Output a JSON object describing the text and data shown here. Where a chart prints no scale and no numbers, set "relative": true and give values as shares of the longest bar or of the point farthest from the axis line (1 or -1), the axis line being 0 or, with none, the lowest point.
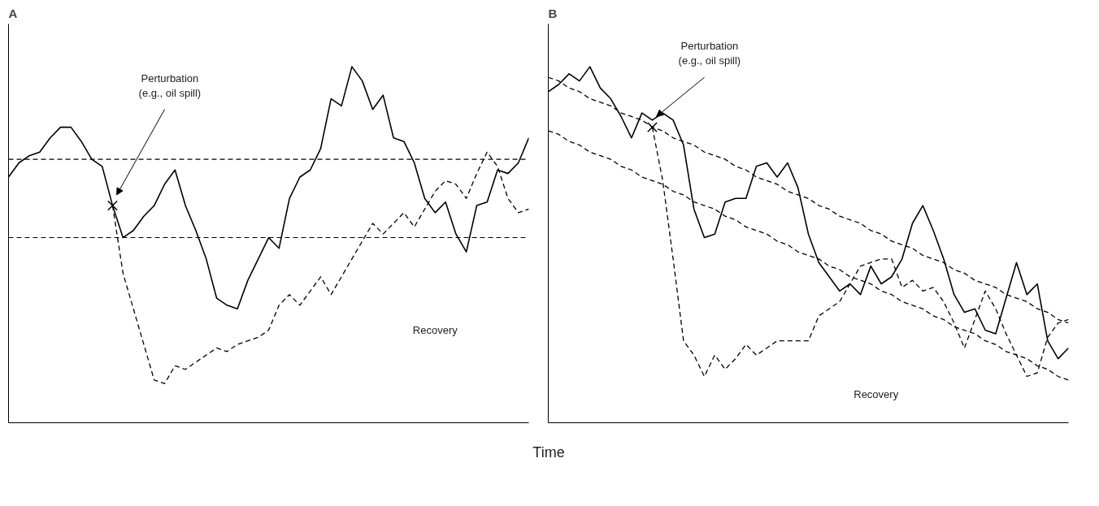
{
  "chart_data": [
    {
      "type": "line",
      "title": "A",
      "xlabel": "Time",
      "relative": true,
      "categories": [
        null,
        null,
        null,
        null,
        null,
        null,
        null,
        null,
        null,
        null,
        null,
        null,
        null,
        null,
        null,
        null,
        null,
        null,
        null,
        null,
        null,
        null,
        null,
        null,
        null,
        null,
        null,
        null,
        null,
        null,
        null,
        null,
        null,
        null,
        null,
        null,
        null,
        null,
        null,
        null,
        null,
        null,
        null,
        null,
        null,
        null,
        null,
        null,
        null,
        null,
        null
      ],
      "series": [
        {
          "color": "#000000",
          "line_style": "solid",
          "values": [
            0.69,
            0.73,
            0.75,
            0.76,
            0.8,
            0.83,
            0.83,
            0.79,
            0.74,
            0.72,
            0.61,
            0.52,
            0.54,
            0.58,
            0.61,
            0.67,
            0.71,
            0.61,
            0.54,
            0.46,
            0.35,
            0.33,
            0.32,
            0.4,
            0.46,
            0.52,
            0.49,
            0.63,
            0.69,
            0.71,
            0.77,
            0.91,
            0.89,
            1.0,
            0.96,
            0.88,
            0.92,
            0.8,
            0.79,
            0.73,
            0.63,
            0.59,
            0.62,
            0.53,
            0.48,
            0.61,
            0.62,
            0.71,
            0.7,
            0.73,
            0.8
          ]
        },
        {
          "color": "#000000",
          "line_style": "dashed",
          "values": [
            null,
            null,
            null,
            null,
            null,
            null,
            null,
            null,
            null,
            null,
            0.61,
            0.42,
            0.32,
            0.22,
            0.12,
            0.11,
            0.16,
            0.15,
            0.17,
            0.19,
            0.21,
            0.2,
            0.22,
            0.23,
            0.24,
            0.26,
            0.33,
            0.36,
            0.33,
            0.37,
            0.41,
            0.36,
            0.41,
            0.46,
            0.51,
            0.56,
            0.53,
            0.56,
            0.59,
            0.55,
            0.6,
            0.65,
            0.68,
            0.67,
            0.63,
            0.7,
            0.76,
            0.72,
            0.63,
            0.59,
            0.6
          ]
        }
      ],
      "ref_lines": [
        {
          "axis": "y",
          "value": 0.74,
          "color": "#000000",
          "line_style": "dashed"
        },
        {
          "axis": "y",
          "value": 0.52,
          "color": "#000000",
          "line_style": "dashed"
        }
      ],
      "annotations": [
        "Perturbation\n(e.g., oil spill)",
        "Recovery"
      ]
    },
    {
      "type": "line",
      "title": "B",
      "relative": true,
      "categories": [
        null,
        null,
        null,
        null,
        null,
        null,
        null,
        null,
        null,
        null,
        null,
        null,
        null,
        null,
        null,
        null,
        null,
        null,
        null,
        null,
        null,
        null,
        null,
        null,
        null,
        null,
        null,
        null,
        null,
        null,
        null,
        null,
        null,
        null,
        null,
        null,
        null,
        null,
        null,
        null,
        null,
        null,
        null,
        null,
        null,
        null,
        null,
        null,
        null,
        null,
        null
      ],
      "series": [
        {
          "color": "#000000",
          "line_style": "solid",
          "values": [
            0.93,
            0.95,
            0.98,
            0.96,
            1.0,
            0.94,
            0.91,
            0.86,
            0.8,
            0.87,
            0.85,
            0.87,
            0.85,
            0.78,
            0.6,
            0.52,
            0.53,
            0.62,
            0.63,
            0.63,
            0.72,
            0.73,
            0.69,
            0.73,
            0.66,
            0.53,
            0.45,
            0.41,
            0.37,
            0.39,
            0.36,
            0.44,
            0.39,
            0.41,
            0.46,
            0.56,
            0.61,
            0.54,
            0.46,
            0.36,
            0.31,
            0.32,
            0.26,
            0.25,
            0.35,
            0.45,
            0.36,
            0.39,
            0.23,
            0.18,
            0.21
          ]
        },
        {
          "color": "#000000",
          "line_style": "dashed",
          "values": [
            null,
            null,
            null,
            null,
            null,
            null,
            null,
            null,
            null,
            null,
            0.83,
            0.68,
            0.46,
            0.23,
            0.19,
            0.13,
            0.19,
            0.15,
            0.18,
            0.22,
            0.19,
            0.21,
            0.23,
            0.23,
            0.23,
            0.23,
            0.3,
            0.32,
            0.34,
            0.39,
            0.44,
            0.45,
            0.46,
            0.46,
            0.38,
            0.4,
            0.37,
            0.38,
            0.34,
            0.28,
            0.21,
            0.29,
            0.37,
            0.32,
            0.25,
            0.19,
            0.13,
            0.14,
            0.24,
            0.28,
            0.29
          ]
        },
        {
          "color": "#000000",
          "line_style": "dashed",
          "values": [
            0.97,
            0.96,
            0.94,
            0.93,
            0.91,
            0.9,
            0.89,
            0.87,
            0.86,
            0.85,
            0.83,
            0.82,
            0.8,
            0.79,
            0.78,
            0.76,
            0.75,
            0.74,
            0.72,
            0.71,
            0.69,
            0.68,
            0.67,
            0.65,
            0.64,
            0.63,
            0.61,
            0.6,
            0.58,
            0.57,
            0.56,
            0.54,
            0.53,
            0.51,
            0.5,
            0.49,
            0.47,
            0.46,
            0.45,
            0.43,
            0.42,
            0.4,
            0.39,
            0.38,
            0.36,
            0.35,
            0.34,
            0.32,
            0.31,
            0.29,
            0.28
          ]
        },
        {
          "color": "#000000",
          "line_style": "dashed",
          "values": [
            0.82,
            0.81,
            0.79,
            0.78,
            0.76,
            0.75,
            0.74,
            0.72,
            0.71,
            0.69,
            0.68,
            0.67,
            0.65,
            0.64,
            0.62,
            0.61,
            0.6,
            0.58,
            0.57,
            0.55,
            0.54,
            0.53,
            0.51,
            0.5,
            0.48,
            0.47,
            0.46,
            0.44,
            0.43,
            0.41,
            0.4,
            0.39,
            0.37,
            0.36,
            0.34,
            0.33,
            0.32,
            0.3,
            0.29,
            0.27,
            0.26,
            0.25,
            0.23,
            0.22,
            0.2,
            0.19,
            0.18,
            0.16,
            0.15,
            0.13,
            0.12
          ]
        }
      ],
      "annotations": [
        "Perturbation\n(e.g., oil spill)",
        "Recovery"
      ]
    }
  ]
}
